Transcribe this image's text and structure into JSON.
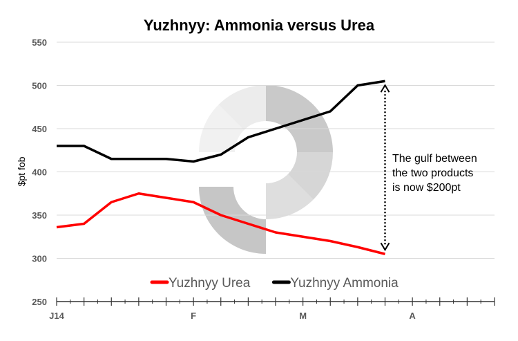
{
  "chart_data": {
    "type": "line",
    "title": "Yuzhnyy: Ammonia versus Urea",
    "xlabel": "",
    "ylabel": "$pt fob",
    "ylim": [
      250,
      550
    ],
    "yticks": [
      250,
      300,
      350,
      400,
      450,
      500,
      550
    ],
    "x": [
      0,
      1,
      2,
      3,
      4,
      5,
      6,
      7,
      8,
      9,
      10,
      11,
      12
    ],
    "xlim": [
      0,
      16
    ],
    "xtick_labels": [
      {
        "at": 0,
        "label": "J14"
      },
      {
        "at": 5,
        "label": "F"
      },
      {
        "at": 9,
        "label": "M"
      },
      {
        "at": 13,
        "label": "A"
      }
    ],
    "grid": true,
    "legend_position": "bottom",
    "series": [
      {
        "name": "Yuzhnyy Urea",
        "color": "#ff0000",
        "values": [
          336,
          340,
          365,
          375,
          370,
          365,
          350,
          340,
          330,
          325,
          320,
          313,
          305
        ]
      },
      {
        "name": "Yuzhnyy Ammonia",
        "color": "#000000",
        "values": [
          430,
          430,
          415,
          415,
          415,
          412,
          420,
          440,
          450,
          460,
          470,
          500,
          505
        ]
      }
    ],
    "annotation": {
      "lines": [
        "The gulf between",
        "the two products",
        "is now $200pt"
      ],
      "arrow_from": 305,
      "arrow_to": 505,
      "at": 12
    }
  }
}
